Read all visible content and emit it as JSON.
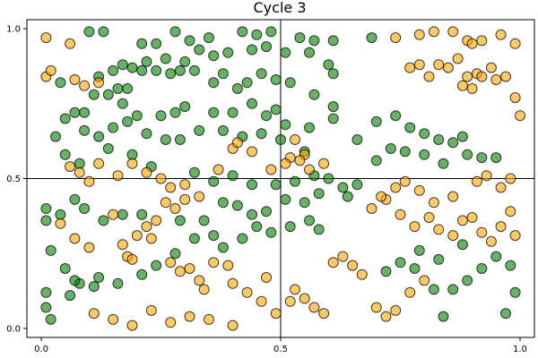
{
  "chart_data": {
    "type": "scatter",
    "title": "Cycle 3",
    "xlabel": "",
    "ylabel": "",
    "xlim": [
      -0.03,
      1.03
    ],
    "ylim": [
      -0.03,
      1.03
    ],
    "xticks": [
      "0.0",
      "0.5",
      "1.0"
    ],
    "yticks": [
      "0.0",
      "0.5",
      "1.0"
    ],
    "grid_lines": [
      0.5
    ],
    "grid_line_color": "#000000",
    "marker_size": 11,
    "point_opacity": 0.6,
    "series": [
      {
        "color": "#008000",
        "points": [
          [
            0.1,
            0.99
          ],
          [
            0.13,
            0.99
          ],
          [
            0.21,
            0.95
          ],
          [
            0.24,
            0.95
          ],
          [
            0.28,
            0.99
          ],
          [
            0.31,
            0.96
          ],
          [
            0.35,
            0.97
          ],
          [
            0.42,
            0.99
          ],
          [
            0.45,
            0.98
          ],
          [
            0.48,
            0.99
          ],
          [
            0.54,
            0.97
          ],
          [
            0.57,
            0.96
          ],
          [
            0.61,
            0.96
          ],
          [
            0.69,
            0.97
          ],
          [
            0.17,
            0.88
          ],
          [
            0.19,
            0.87
          ],
          [
            0.22,
            0.89
          ],
          [
            0.26,
            0.9
          ],
          [
            0.3,
            0.89
          ],
          [
            0.33,
            0.93
          ],
          [
            0.36,
            0.91
          ],
          [
            0.39,
            0.92
          ],
          [
            0.44,
            0.93
          ],
          [
            0.47,
            0.94
          ],
          [
            0.51,
            0.92
          ],
          [
            0.56,
            0.92
          ],
          [
            0.6,
            0.88
          ],
          [
            0.12,
            0.84
          ],
          [
            0.15,
            0.86
          ],
          [
            0.16,
            0.8
          ],
          [
            0.18,
            0.8
          ],
          [
            0.21,
            0.86
          ],
          [
            0.24,
            0.86
          ],
          [
            0.27,
            0.85
          ],
          [
            0.29,
            0.86
          ],
          [
            0.32,
            0.86
          ],
          [
            0.36,
            0.82
          ],
          [
            0.38,
            0.85
          ],
          [
            0.41,
            0.8
          ],
          [
            0.43,
            0.82
          ],
          [
            0.46,
            0.85
          ],
          [
            0.49,
            0.83
          ],
          [
            0.52,
            0.82
          ],
          [
            0.57,
            0.78
          ],
          [
            0.61,
            0.85
          ],
          [
            0.04,
            0.82
          ],
          [
            0.07,
            0.72
          ],
          [
            0.09,
            0.72
          ],
          [
            0.11,
            0.78
          ],
          [
            0.14,
            0.78
          ],
          [
            0.17,
            0.75
          ],
          [
            0.2,
            0.71
          ],
          [
            0.25,
            0.71
          ],
          [
            0.28,
            0.72
          ],
          [
            0.3,
            0.74
          ],
          [
            0.36,
            0.72
          ],
          [
            0.4,
            0.72
          ],
          [
            0.44,
            0.75
          ],
          [
            0.47,
            0.71
          ],
          [
            0.49,
            0.73
          ],
          [
            0.51,
            0.68
          ],
          [
            0.56,
            0.67
          ],
          [
            0.61,
            0.74
          ],
          [
            0.03,
            0.64
          ],
          [
            0.05,
            0.7
          ],
          [
            0.09,
            0.66
          ],
          [
            0.12,
            0.64
          ],
          [
            0.15,
            0.67
          ],
          [
            0.18,
            0.69
          ],
          [
            0.22,
            0.65
          ],
          [
            0.26,
            0.63
          ],
          [
            0.29,
            0.63
          ],
          [
            0.33,
            0.66
          ],
          [
            0.38,
            0.66
          ],
          [
            0.42,
            0.64
          ],
          [
            0.46,
            0.65
          ],
          [
            0.5,
            0.63
          ],
          [
            0.55,
            0.59
          ],
          [
            0.61,
            0.7
          ],
          [
            0.66,
            0.63
          ],
          [
            0.7,
            0.69
          ],
          [
            0.74,
            0.71
          ],
          [
            0.77,
            0.67
          ],
          [
            0.8,
            0.65
          ],
          [
            0.83,
            0.63
          ],
          [
            0.86,
            0.62
          ],
          [
            0.88,
            0.64
          ],
          [
            0.05,
            0.58
          ],
          [
            0.08,
            0.55
          ],
          [
            0.14,
            0.6
          ],
          [
            0.19,
            0.58
          ],
          [
            0.23,
            0.54
          ],
          [
            0.32,
            0.52
          ],
          [
            0.36,
            0.49
          ],
          [
            0.4,
            0.51
          ],
          [
            0.44,
            0.48
          ],
          [
            0.49,
            0.48
          ],
          [
            0.53,
            0.49
          ],
          [
            0.57,
            0.51
          ],
          [
            0.6,
            0.5
          ],
          [
            0.63,
            0.47
          ],
          [
            0.66,
            0.48
          ],
          [
            0.7,
            0.56
          ],
          [
            0.73,
            0.6
          ],
          [
            0.76,
            0.59
          ],
          [
            0.8,
            0.58
          ],
          [
            0.84,
            0.55
          ],
          [
            0.89,
            0.58
          ],
          [
            0.92,
            0.57
          ],
          [
            0.95,
            0.57
          ],
          [
            0.01,
            0.4
          ],
          [
            0.04,
            0.38
          ],
          [
            0.07,
            0.43
          ],
          [
            0.09,
            0.4
          ],
          [
            0.13,
            0.36
          ],
          [
            0.17,
            0.38
          ],
          [
            0.21,
            0.38
          ],
          [
            0.29,
            0.36
          ],
          [
            0.34,
            0.36
          ],
          [
            0.38,
            0.42
          ],
          [
            0.41,
            0.41
          ],
          [
            0.44,
            0.38
          ],
          [
            0.47,
            0.39
          ],
          [
            0.51,
            0.43
          ],
          [
            0.55,
            0.42
          ],
          [
            0.58,
            0.45
          ],
          [
            0.64,
            0.44
          ],
          [
            0.01,
            0.36
          ],
          [
            0.02,
            0.26
          ],
          [
            0.05,
            0.2
          ],
          [
            0.06,
            0.11
          ],
          [
            0.08,
            0.15
          ],
          [
            0.12,
            0.17
          ],
          [
            0.16,
            0.15
          ],
          [
            0.21,
            0.18
          ],
          [
            0.24,
            0.21
          ],
          [
            0.28,
            0.25
          ],
          [
            0.32,
            0.3
          ],
          [
            0.36,
            0.31
          ],
          [
            0.38,
            0.27
          ],
          [
            0.42,
            0.3
          ],
          [
            0.45,
            0.34
          ],
          [
            0.48,
            0.32
          ],
          [
            0.52,
            0.34
          ],
          [
            0.56,
            0.36
          ],
          [
            0.58,
            0.33
          ],
          [
            0.01,
            0.12
          ],
          [
            0.01,
            0.07
          ],
          [
            0.02,
            0.03
          ],
          [
            0.07,
            0.16
          ],
          [
            0.11,
            0.14
          ],
          [
            0.72,
            0.19
          ],
          [
            0.75,
            0.22
          ],
          [
            0.78,
            0.2
          ],
          [
            0.82,
            0.13
          ],
          [
            0.86,
            0.13
          ],
          [
            0.89,
            0.16
          ],
          [
            0.92,
            0.2
          ],
          [
            0.95,
            0.24
          ],
          [
            0.98,
            0.21
          ],
          [
            0.99,
            0.12
          ],
          [
            0.97,
            0.05
          ],
          [
            0.84,
            0.04
          ],
          [
            0.79,
            0.26
          ],
          [
            0.88,
            0.28
          ],
          [
            0.83,
            0.23
          ]
        ]
      },
      {
        "color": "#ffa500",
        "points": [
          [
            0.01,
            0.97
          ],
          [
            0.01,
            0.84
          ],
          [
            0.02,
            0.86
          ],
          [
            0.06,
            0.95
          ],
          [
            0.07,
            0.83
          ],
          [
            0.09,
            0.81
          ],
          [
            0.12,
            0.82
          ],
          [
            0.06,
            0.54
          ],
          [
            0.08,
            0.52
          ],
          [
            0.1,
            0.49
          ],
          [
            0.12,
            0.55
          ],
          [
            0.16,
            0.51
          ],
          [
            0.19,
            0.55
          ],
          [
            0.22,
            0.52
          ],
          [
            0.25,
            0.5
          ],
          [
            0.27,
            0.47
          ],
          [
            0.3,
            0.48
          ],
          [
            0.33,
            0.44
          ],
          [
            0.37,
            0.53
          ],
          [
            0.4,
            0.6
          ],
          [
            0.41,
            0.62
          ],
          [
            0.44,
            0.59
          ],
          [
            0.48,
            0.53
          ],
          [
            0.52,
            0.57
          ],
          [
            0.53,
            0.63
          ],
          [
            0.55,
            0.58
          ],
          [
            0.56,
            0.53
          ],
          [
            0.59,
            0.55
          ],
          [
            0.51,
            0.55
          ],
          [
            0.54,
            0.56
          ],
          [
            0.74,
            0.97
          ],
          [
            0.77,
            0.87
          ],
          [
            0.79,
            0.88
          ],
          [
            0.81,
            0.84
          ],
          [
            0.83,
            0.88
          ],
          [
            0.85,
            0.87
          ],
          [
            0.87,
            0.9
          ],
          [
            0.88,
            0.81
          ],
          [
            0.89,
            0.84
          ],
          [
            0.9,
            0.8
          ],
          [
            0.91,
            0.85
          ],
          [
            0.92,
            0.84
          ],
          [
            0.94,
            0.87
          ],
          [
            0.95,
            0.83
          ],
          [
            0.97,
            0.84
          ],
          [
            0.99,
            0.77
          ],
          [
            1.0,
            0.71
          ],
          [
            0.99,
            0.95
          ],
          [
            0.96,
            0.98
          ],
          [
            0.92,
            0.96
          ],
          [
            0.89,
            0.96
          ],
          [
            0.86,
            0.99
          ],
          [
            0.82,
            0.99
          ],
          [
            0.79,
            0.98
          ],
          [
            0.9,
            0.95
          ],
          [
            0.04,
            0.35
          ],
          [
            0.07,
            0.3
          ],
          [
            0.1,
            0.27
          ],
          [
            0.15,
            0.38
          ],
          [
            0.17,
            0.28
          ],
          [
            0.2,
            0.31
          ],
          [
            0.22,
            0.34
          ],
          [
            0.23,
            0.3
          ],
          [
            0.24,
            0.36
          ],
          [
            0.26,
            0.42
          ],
          [
            0.28,
            0.4
          ],
          [
            0.3,
            0.43
          ],
          [
            0.18,
            0.24
          ],
          [
            0.19,
            0.23
          ],
          [
            0.27,
            0.22
          ],
          [
            0.29,
            0.19
          ],
          [
            0.31,
            0.2
          ],
          [
            0.33,
            0.16
          ],
          [
            0.34,
            0.13
          ],
          [
            0.36,
            0.22
          ],
          [
            0.39,
            0.21
          ],
          [
            0.4,
            0.15
          ],
          [
            0.43,
            0.12
          ],
          [
            0.46,
            0.09
          ],
          [
            0.47,
            0.17
          ],
          [
            0.49,
            0.05
          ],
          [
            0.52,
            0.09
          ],
          [
            0.53,
            0.13
          ],
          [
            0.55,
            0.1
          ],
          [
            0.57,
            0.07
          ],
          [
            0.59,
            0.05
          ],
          [
            0.61,
            0.22
          ],
          [
            0.63,
            0.24
          ],
          [
            0.65,
            0.21
          ],
          [
            0.67,
            0.18
          ],
          [
            0.7,
            0.07
          ],
          [
            0.72,
            0.04
          ],
          [
            0.74,
            0.06
          ],
          [
            0.77,
            0.12
          ],
          [
            0.8,
            0.16
          ],
          [
            0.11,
            0.05
          ],
          [
            0.15,
            0.03
          ],
          [
            0.19,
            0.01
          ],
          [
            0.23,
            0.06
          ],
          [
            0.27,
            0.02
          ],
          [
            0.31,
            0.04
          ],
          [
            0.35,
            0.03
          ],
          [
            0.4,
            0.01
          ],
          [
            0.69,
            0.4
          ],
          [
            0.72,
            0.43
          ],
          [
            0.75,
            0.38
          ],
          [
            0.78,
            0.34
          ],
          [
            0.81,
            0.37
          ],
          [
            0.83,
            0.33
          ],
          [
            0.86,
            0.31
          ],
          [
            0.88,
            0.36
          ],
          [
            0.9,
            0.37
          ],
          [
            0.92,
            0.32
          ],
          [
            0.94,
            0.29
          ],
          [
            0.96,
            0.34
          ],
          [
            0.98,
            0.39
          ],
          [
            0.99,
            0.31
          ],
          [
            0.98,
            0.5
          ],
          [
            0.96,
            0.47
          ],
          [
            0.93,
            0.51
          ],
          [
            0.91,
            0.49
          ],
          [
            0.86,
            0.44
          ],
          [
            0.82,
            0.42
          ],
          [
            0.79,
            0.46
          ],
          [
            0.76,
            0.49
          ],
          [
            0.74,
            0.47
          ],
          [
            0.71,
            0.44
          ]
        ]
      }
    ]
  }
}
